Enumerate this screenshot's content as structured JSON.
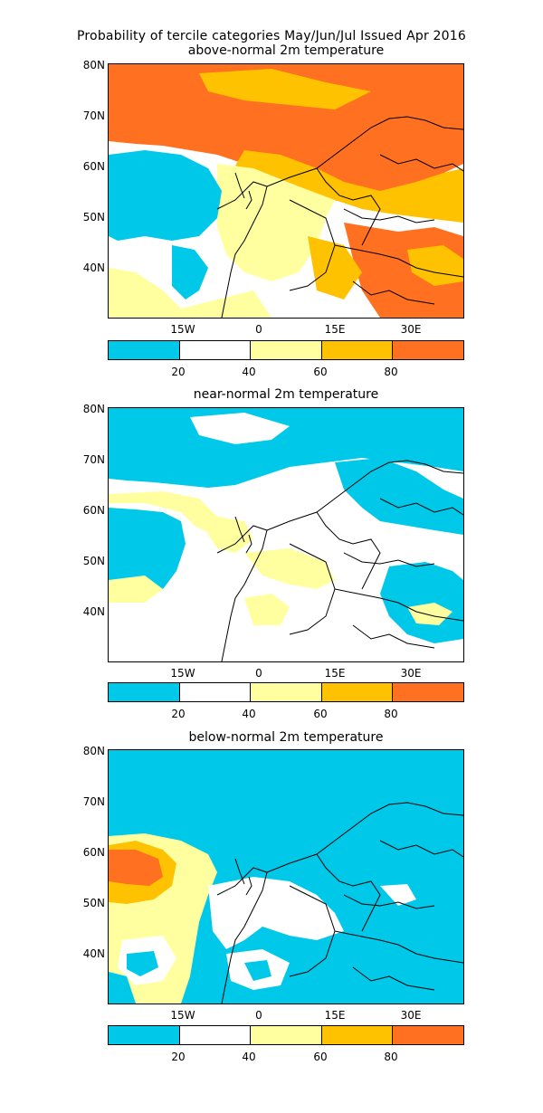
{
  "header": {
    "title": "Probability of tercile categories May/Jun/Jul Issued Apr 2016"
  },
  "colors": {
    "below20": "#00c8e8",
    "b20_40": "#ffffff",
    "b40_60": "#ffffa0",
    "b60_80": "#ffc200",
    "above80": "#ff7020",
    "land_line": "#000000"
  },
  "axes": {
    "lat_labels": [
      "80N",
      "70N",
      "60N",
      "50N",
      "40N"
    ],
    "lon_labels": [
      "15W",
      "0",
      "15E",
      "30E"
    ]
  },
  "colorbar": {
    "labels": [
      "20",
      "40",
      "60",
      "80"
    ]
  },
  "panels": [
    {
      "id": "above",
      "subtitle": "above-normal 2m temperature"
    },
    {
      "id": "near",
      "subtitle": "near-normal 2m temperature"
    },
    {
      "id": "below",
      "subtitle": "below-normal 2m temperature"
    }
  ]
}
